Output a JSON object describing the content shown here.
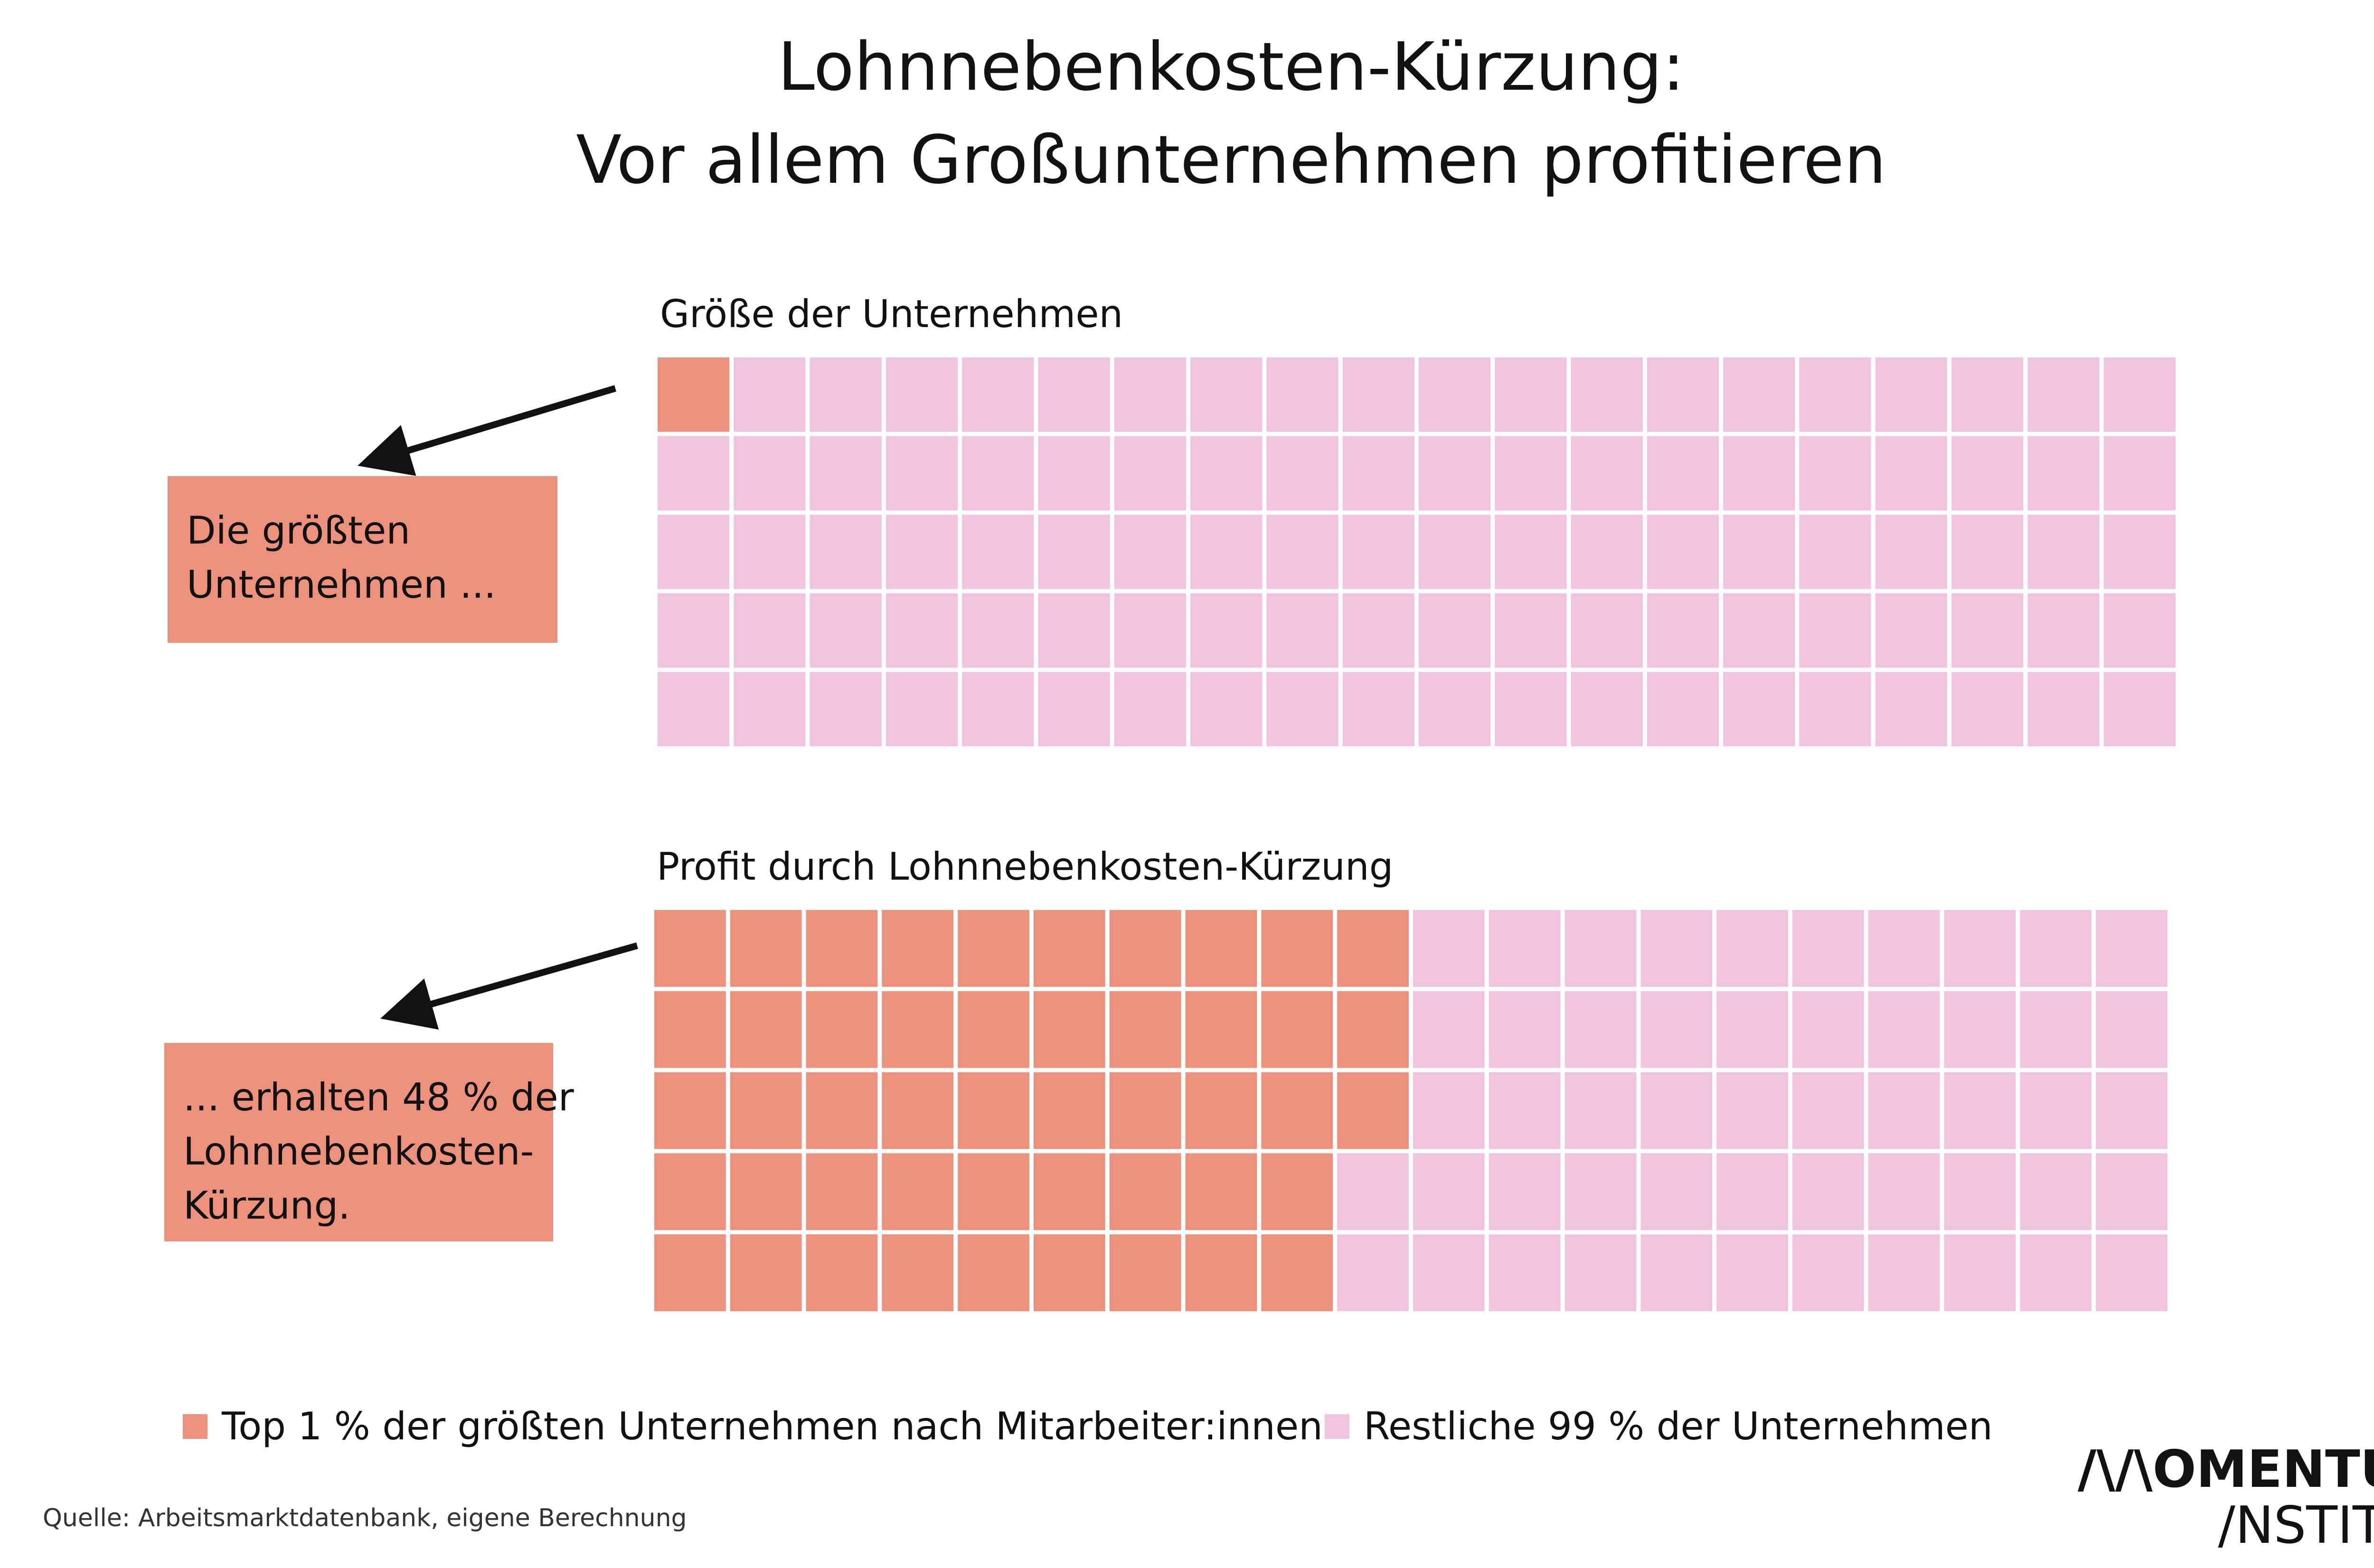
{
  "header": {
    "title_line1": "Lohnnebenkosten-Kürzung:",
    "title_line2": "Vor allem Großunternehmen profitieren"
  },
  "colors": {
    "top": "#ec917b",
    "rest": "#f0c4df",
    "text": "#111111"
  },
  "chart_data": [
    {
      "type": "waffle",
      "title": "Größe der Unternehmen",
      "rows": 5,
      "columns": 20,
      "highlighted_cells": 1,
      "series": [
        {
          "name": "Top 1 % der größten Unternehmen nach Mitarbeiter:innen",
          "value": 1
        },
        {
          "name": "Restliche 99 % der Unternehmen",
          "value": 99
        }
      ]
    },
    {
      "type": "waffle",
      "title": "Profit durch Lohnnebenkosten-Kürzung",
      "rows": 5,
      "columns": 20,
      "highlighted_cells": 48,
      "series": [
        {
          "name": "Top 1 % der größten Unternehmen nach Mitarbeiter:innen",
          "value": 48
        },
        {
          "name": "Restliche 99 % der Unternehmen",
          "value": 52
        }
      ]
    }
  ],
  "callouts": {
    "first": [
      "Die größten",
      "Unternehmen ..."
    ],
    "second": [
      "... erhalten 48 % der",
      "Lohnnebenkosten-",
      "Kürzung."
    ]
  },
  "legend": {
    "top": "Top 1 % der größten Unternehmen nach Mitarbeiter:innen",
    "rest": "Restliche 99 % der Unternehmen"
  },
  "source": "Quelle: Arbeitsmarktdatenbank, eigene Berechnung",
  "logo": {
    "line1": "/\\/\\OMENTUM",
    "line2": "/NSTITUT"
  }
}
